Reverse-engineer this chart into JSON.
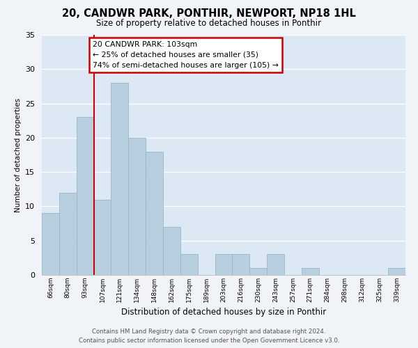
{
  "title": "20, CANDWR PARK, PONTHIR, NEWPORT, NP18 1HL",
  "subtitle": "Size of property relative to detached houses in Ponthir",
  "xlabel": "Distribution of detached houses by size in Ponthir",
  "ylabel": "Number of detached properties",
  "bar_color": "#b8cfe0",
  "bar_edge_color": "#9ab5cc",
  "categories": [
    "66sqm",
    "80sqm",
    "93sqm",
    "107sqm",
    "121sqm",
    "134sqm",
    "148sqm",
    "162sqm",
    "175sqm",
    "189sqm",
    "203sqm",
    "216sqm",
    "230sqm",
    "243sqm",
    "257sqm",
    "271sqm",
    "284sqm",
    "298sqm",
    "312sqm",
    "325sqm",
    "339sqm"
  ],
  "values": [
    9,
    12,
    23,
    11,
    28,
    20,
    18,
    7,
    3,
    0,
    3,
    3,
    1,
    3,
    0,
    1,
    0,
    0,
    0,
    0,
    1
  ],
  "ylim": [
    0,
    35
  ],
  "yticks": [
    0,
    5,
    10,
    15,
    20,
    25,
    30,
    35
  ],
  "vline_x_index": 3,
  "annotation_title": "20 CANDWR PARK: 103sqm",
  "annotation_line1": "← 25% of detached houses are smaller (35)",
  "annotation_line2": "74% of semi-detached houses are larger (105) →",
  "annotation_box_color": "#ffffff",
  "annotation_box_edge": "#cc0000",
  "vline_color": "#cc0000",
  "footer_line1": "Contains HM Land Registry data © Crown copyright and database right 2024.",
  "footer_line2": "Contains public sector information licensed under the Open Government Licence v3.0.",
  "background_color": "#f0f4f8",
  "grid_color": "#dce8f0",
  "plot_bg_color": "#dce8f4"
}
